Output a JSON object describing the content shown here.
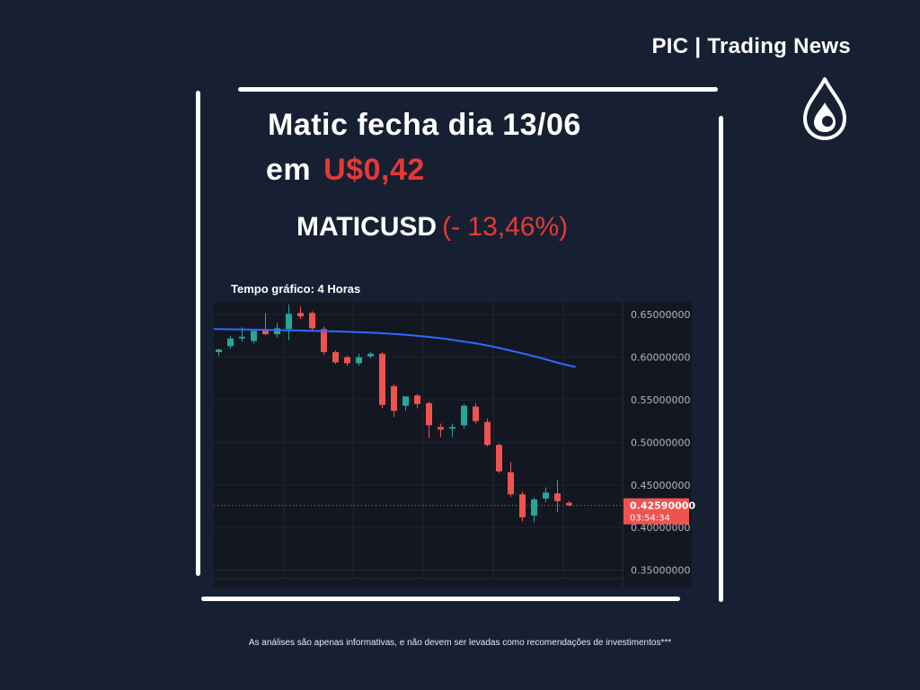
{
  "brand": {
    "name": "PIC | Trading News",
    "logo_icon": "flame-drop-icon"
  },
  "headline": {
    "line1": "Matic fecha dia 13/06",
    "line2_prefix": "em",
    "price": "U$0,42",
    "ticker": "MATICUSD",
    "change": "(- 13,46%)"
  },
  "timeframe_label": "Tempo gráfico: 4 Horas",
  "disclaimer": "As análises são apenas informativas, e não devem ser levadas como recomendações de investimentos***",
  "chart_data": {
    "type": "candlestick",
    "symbol": "MATICUSD",
    "y_axis": {
      "range": [
        0.34,
        0.665
      ],
      "ticks": [
        "0.65000000",
        "0.60000000",
        "0.55000000",
        "0.50000000",
        "0.45000000",
        "0.40000000",
        "0.35000000"
      ],
      "tick_values": [
        0.65,
        0.6,
        0.55,
        0.5,
        0.45,
        0.4,
        0.35
      ]
    },
    "grid": true,
    "colors": {
      "up": "#26a69a",
      "down": "#ef5350",
      "ma": "#2f6bff",
      "background": "#131722",
      "grid": "#1f2433",
      "axis_text": "#b2b5be"
    },
    "current_price": {
      "label": "0.42590000",
      "countdown": "03:54:34",
      "value": 0.4259
    },
    "candles": [
      {
        "o": 0.606,
        "h": 0.61,
        "l": 0.601,
        "c": 0.609
      },
      {
        "o": 0.613,
        "h": 0.625,
        "l": 0.61,
        "c": 0.622
      },
      {
        "o": 0.622,
        "h": 0.635,
        "l": 0.618,
        "c": 0.624
      },
      {
        "o": 0.619,
        "h": 0.632,
        "l": 0.616,
        "c": 0.631
      },
      {
        "o": 0.632,
        "h": 0.652,
        "l": 0.626,
        "c": 0.627
      },
      {
        "o": 0.627,
        "h": 0.64,
        "l": 0.623,
        "c": 0.634
      },
      {
        "o": 0.633,
        "h": 0.662,
        "l": 0.62,
        "c": 0.651
      },
      {
        "o": 0.652,
        "h": 0.66,
        "l": 0.645,
        "c": 0.648
      },
      {
        "o": 0.652,
        "h": 0.654,
        "l": 0.632,
        "c": 0.634
      },
      {
        "o": 0.633,
        "h": 0.636,
        "l": 0.603,
        "c": 0.606
      },
      {
        "o": 0.606,
        "h": 0.608,
        "l": 0.592,
        "c": 0.594
      },
      {
        "o": 0.6,
        "h": 0.602,
        "l": 0.59,
        "c": 0.593
      },
      {
        "o": 0.593,
        "h": 0.604,
        "l": 0.59,
        "c": 0.6
      },
      {
        "o": 0.601,
        "h": 0.606,
        "l": 0.599,
        "c": 0.604
      },
      {
        "o": 0.604,
        "h": 0.606,
        "l": 0.54,
        "c": 0.544
      },
      {
        "o": 0.566,
        "h": 0.568,
        "l": 0.53,
        "c": 0.537
      },
      {
        "o": 0.543,
        "h": 0.552,
        "l": 0.537,
        "c": 0.554
      },
      {
        "o": 0.555,
        "h": 0.557,
        "l": 0.54,
        "c": 0.545
      },
      {
        "o": 0.546,
        "h": 0.548,
        "l": 0.505,
        "c": 0.52
      },
      {
        "o": 0.518,
        "h": 0.522,
        "l": 0.506,
        "c": 0.515
      },
      {
        "o": 0.516,
        "h": 0.522,
        "l": 0.506,
        "c": 0.518
      },
      {
        "o": 0.52,
        "h": 0.545,
        "l": 0.516,
        "c": 0.543
      },
      {
        "o": 0.542,
        "h": 0.546,
        "l": 0.522,
        "c": 0.525
      },
      {
        "o": 0.524,
        "h": 0.528,
        "l": 0.495,
        "c": 0.497
      },
      {
        "o": 0.497,
        "h": 0.499,
        "l": 0.464,
        "c": 0.466
      },
      {
        "o": 0.465,
        "h": 0.477,
        "l": 0.436,
        "c": 0.439
      },
      {
        "o": 0.439,
        "h": 0.442,
        "l": 0.407,
        "c": 0.412
      },
      {
        "o": 0.414,
        "h": 0.435,
        "l": 0.406,
        "c": 0.433
      },
      {
        "o": 0.434,
        "h": 0.447,
        "l": 0.43,
        "c": 0.441
      },
      {
        "o": 0.44,
        "h": 0.456,
        "l": 0.418,
        "c": 0.431
      },
      {
        "o": 0.429,
        "h": 0.431,
        "l": 0.425,
        "c": 0.426
      }
    ],
    "moving_average": [
      0.633,
      0.6328,
      0.6325,
      0.6322,
      0.6318,
      0.6315,
      0.631,
      0.6305,
      0.63,
      0.6292,
      0.6285,
      0.6272,
      0.6258,
      0.624,
      0.6218,
      0.619,
      0.616,
      0.6125,
      0.608,
      0.6035,
      0.5985,
      0.593,
      0.5885
    ]
  }
}
